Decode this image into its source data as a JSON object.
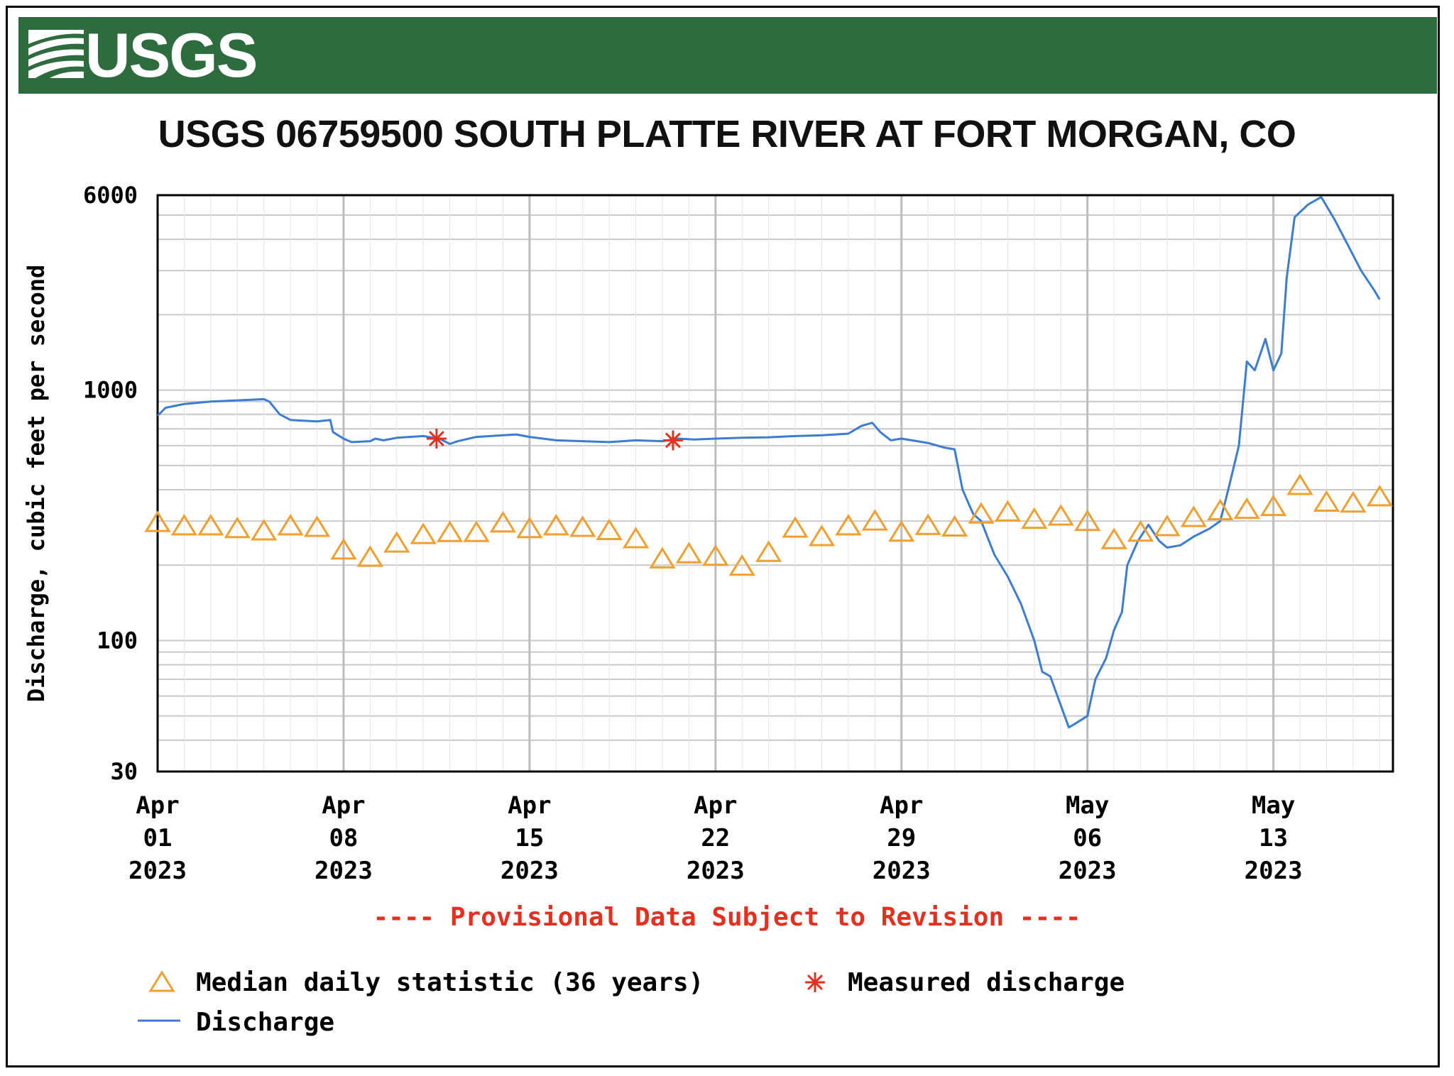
{
  "colors": {
    "banner": "#2e6b3e",
    "discharge": "#3d7dd0",
    "median": "#f0a030",
    "measured": "#e53020",
    "provisional": "#e53020",
    "grid": "#c8c8c8"
  },
  "logo": {
    "text": "USGS"
  },
  "provisional_notice": "---- Provisional Data Subject to Revision ----",
  "chart_data": {
    "type": "line",
    "title": "USGS 06759500 SOUTH PLATTE RIVER AT FORT MORGAN, CO",
    "ylabel": "Discharge, cubic feet per second",
    "xlabel": "",
    "y_scale": "log",
    "ylim": [
      30,
      6000
    ],
    "xlim_days": [
      0,
      46.5
    ],
    "y_ticks": [
      "30",
      "100",
      "1000",
      "6000"
    ],
    "x_ticks": [
      {
        "day": 0,
        "lines": [
          "Apr",
          "01",
          "2023"
        ]
      },
      {
        "day": 7,
        "lines": [
          "Apr",
          "08",
          "2023"
        ]
      },
      {
        "day": 14,
        "lines": [
          "Apr",
          "15",
          "2023"
        ]
      },
      {
        "day": 21,
        "lines": [
          "Apr",
          "22",
          "2023"
        ]
      },
      {
        "day": 28,
        "lines": [
          "Apr",
          "29",
          "2023"
        ]
      },
      {
        "day": 35,
        "lines": [
          "May",
          "06",
          "2023"
        ]
      },
      {
        "day": 42,
        "lines": [
          "May",
          "13",
          "2023"
        ]
      }
    ],
    "series": [
      {
        "name": "Discharge",
        "style": "line",
        "points": [
          [
            0.0,
            790
          ],
          [
            0.3,
            850
          ],
          [
            1.0,
            880
          ],
          [
            2.0,
            900
          ],
          [
            3.0,
            910
          ],
          [
            4.0,
            920
          ],
          [
            4.2,
            900
          ],
          [
            4.6,
            800
          ],
          [
            5.0,
            760
          ],
          [
            6.0,
            750
          ],
          [
            6.5,
            760
          ],
          [
            6.6,
            680
          ],
          [
            7.0,
            640
          ],
          [
            7.3,
            620
          ],
          [
            8.0,
            625
          ],
          [
            8.2,
            640
          ],
          [
            8.5,
            630
          ],
          [
            9.0,
            645
          ],
          [
            10.0,
            655
          ],
          [
            10.6,
            640
          ],
          [
            11.0,
            610
          ],
          [
            11.3,
            625
          ],
          [
            12.0,
            650
          ],
          [
            13.0,
            660
          ],
          [
            13.5,
            665
          ],
          [
            14.0,
            650
          ],
          [
            15.0,
            630
          ],
          [
            16.0,
            625
          ],
          [
            17.0,
            620
          ],
          [
            18.0,
            630
          ],
          [
            19.0,
            625
          ],
          [
            19.6,
            640
          ],
          [
            20.2,
            635
          ],
          [
            21.0,
            640
          ],
          [
            22.0,
            645
          ],
          [
            23.0,
            648
          ],
          [
            24.0,
            655
          ],
          [
            25.0,
            660
          ],
          [
            26.0,
            670
          ],
          [
            26.5,
            720
          ],
          [
            26.9,
            740
          ],
          [
            27.2,
            680
          ],
          [
            27.6,
            630
          ],
          [
            28.0,
            640
          ],
          [
            29.0,
            615
          ],
          [
            29.6,
            590
          ],
          [
            30.0,
            580
          ],
          [
            30.3,
            400
          ],
          [
            30.7,
            320
          ],
          [
            31.0,
            300
          ],
          [
            31.5,
            220
          ],
          [
            32.0,
            180
          ],
          [
            32.5,
            140
          ],
          [
            33.0,
            100
          ],
          [
            33.3,
            75
          ],
          [
            33.6,
            72
          ],
          [
            34.0,
            55
          ],
          [
            34.3,
            45
          ],
          [
            34.6,
            47
          ],
          [
            35.0,
            50
          ],
          [
            35.3,
            70
          ],
          [
            35.7,
            85
          ],
          [
            36.0,
            110
          ],
          [
            36.3,
            130
          ],
          [
            36.5,
            200
          ],
          [
            36.9,
            250
          ],
          [
            37.3,
            290
          ],
          [
            37.7,
            250
          ],
          [
            38.0,
            235
          ],
          [
            38.5,
            240
          ],
          [
            39.0,
            260
          ],
          [
            39.6,
            280
          ],
          [
            40.0,
            300
          ],
          [
            40.3,
            400
          ],
          [
            40.7,
            600
          ],
          [
            41.0,
            1300
          ],
          [
            41.3,
            1200
          ],
          [
            41.7,
            1600
          ],
          [
            42.0,
            1200
          ],
          [
            42.3,
            1400
          ],
          [
            42.5,
            2800
          ],
          [
            42.8,
            4900
          ],
          [
            43.3,
            5500
          ],
          [
            43.8,
            5900
          ],
          [
            44.3,
            4800
          ],
          [
            44.8,
            3800
          ],
          [
            45.3,
            3000
          ],
          [
            45.8,
            2500
          ],
          [
            46.0,
            2300
          ]
        ]
      },
      {
        "name": "Median daily statistic (36 years)",
        "style": "triangle",
        "points": [
          [
            0,
            296
          ],
          [
            1,
            287
          ],
          [
            2,
            287
          ],
          [
            3,
            280
          ],
          [
            4,
            274
          ],
          [
            5,
            287
          ],
          [
            6,
            283
          ],
          [
            7,
            230
          ],
          [
            8,
            215
          ],
          [
            9,
            245
          ],
          [
            10,
            265
          ],
          [
            11,
            270
          ],
          [
            12,
            270
          ],
          [
            13,
            295
          ],
          [
            14,
            280
          ],
          [
            15,
            287
          ],
          [
            16,
            283
          ],
          [
            17,
            275
          ],
          [
            18,
            255
          ],
          [
            19,
            212
          ],
          [
            20,
            222
          ],
          [
            21,
            217
          ],
          [
            22,
            198
          ],
          [
            23,
            225
          ],
          [
            24,
            281
          ],
          [
            25,
            260
          ],
          [
            26,
            287
          ],
          [
            27,
            300
          ],
          [
            28,
            271
          ],
          [
            29,
            288
          ],
          [
            30,
            284
          ],
          [
            31,
            320
          ],
          [
            32,
            326
          ],
          [
            33,
            305
          ],
          [
            34,
            314
          ],
          [
            35,
            299
          ],
          [
            36,
            253
          ],
          [
            37,
            271
          ],
          [
            38,
            285
          ],
          [
            39,
            310
          ],
          [
            40,
            330
          ],
          [
            41,
            334
          ],
          [
            42,
            343
          ],
          [
            43,
            416
          ],
          [
            44,
            357
          ],
          [
            45,
            354
          ],
          [
            46,
            375
          ]
        ]
      },
      {
        "name": "Measured discharge",
        "style": "star",
        "points": [
          [
            10.5,
            640
          ],
          [
            19.4,
            630
          ]
        ]
      }
    ],
    "legend": {
      "position": "bottom-left",
      "entries": [
        {
          "label": "Median daily statistic (36 years)",
          "marker": "triangle"
        },
        {
          "label": "Measured discharge",
          "marker": "star"
        },
        {
          "label": "Discharge",
          "marker": "line"
        }
      ]
    }
  }
}
